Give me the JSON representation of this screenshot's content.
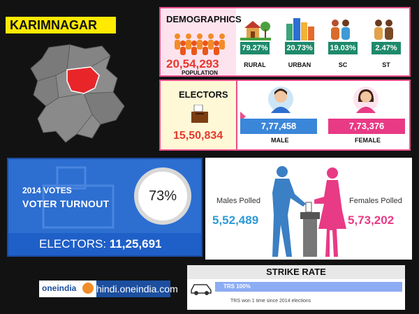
{
  "region": "KARIMNAGAR",
  "demographics": {
    "heading": "DEMOGRAPHICS",
    "population": "20,54,293",
    "population_label": "POPULATION",
    "categories": [
      {
        "pct": "79.27%",
        "label": "RURAL",
        "color": "#1e8a6b"
      },
      {
        "pct": "20.73%",
        "label": "URBAN",
        "color": "#1e8a6b"
      },
      {
        "pct": "19.03%",
        "label": "SC",
        "color": "#1e8a6b"
      },
      {
        "pct": "2.47%",
        "label": "ST",
        "color": "#1e8a6b"
      }
    ]
  },
  "electors": {
    "heading": "ELECTORS",
    "total": "15,50,834",
    "male": {
      "value": "7,77,458",
      "label": "MALE",
      "color": "#3a86d9"
    },
    "female": {
      "value": "7,73,376",
      "label": "FEMALE",
      "color": "#e83a85"
    }
  },
  "turnout": {
    "year_label": "2014 VOTES",
    "title": "VOTER TURNOUT",
    "percent": "73%",
    "electors_label": "ELECTORS:",
    "electors_value": "11,25,691"
  },
  "polled": {
    "males_label": "Males Polled",
    "males_value": "5,52,489",
    "females_label": "Females Polled",
    "females_value": "5,73,202"
  },
  "footer": {
    "logo_text": "oneindia",
    "site": "hindi.oneindia.com"
  },
  "strike_rate": {
    "heading": "STRIKE RATE",
    "bar_text": "TRS 100%",
    "value": 1.0,
    "note": "TRS won 1 time since 2014 elections"
  },
  "colors": {
    "accent_red": "#e53a2d",
    "pink_border": "#e94f8b",
    "blue": "#2d6ed1",
    "highlight_district": "#e8262a"
  }
}
